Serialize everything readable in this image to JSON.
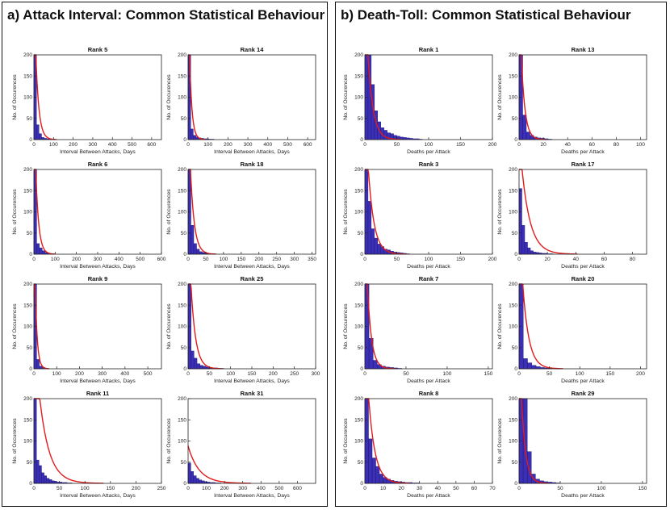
{
  "panels": [
    {
      "id": "a",
      "title": "a) Attack Interval: Common Statistical Behaviour"
    },
    {
      "id": "b",
      "title": "b) Death-Toll: Common Statistical Behaviour"
    }
  ],
  "colors": {
    "bar": "#3b2fb5",
    "fit": "#e31a1c",
    "axis": "#222222"
  },
  "chart_data": [
    {
      "panel": "a",
      "type": "bar",
      "title": "Rank 5",
      "xlabel": "Interval Between Attacks, Days",
      "ylabel": "No. of Occurences",
      "xlim": [
        0,
        650
      ],
      "ylim": [
        0,
        200
      ],
      "xticks": [
        0,
        100,
        200,
        300,
        400,
        500,
        600
      ],
      "yticks": [
        0,
        50,
        100,
        150,
        200
      ],
      "bin_width": 13,
      "values": [
        200,
        35,
        14,
        5,
        3,
        2,
        1
      ],
      "fit_decay": 16
    },
    {
      "panel": "a",
      "type": "bar",
      "title": "Rank 14",
      "xlabel": "Interval Between Attacks, Days",
      "ylabel": "No. of Occurences",
      "xlim": [
        0,
        640
      ],
      "ylim": [
        0,
        200
      ],
      "xticks": [
        0,
        100,
        200,
        300,
        400,
        500,
        600
      ],
      "yticks": [
        0,
        50,
        100,
        150,
        200
      ],
      "bin_width": 13,
      "values": [
        200,
        25,
        10,
        6,
        4,
        3,
        2,
        2,
        1,
        1
      ],
      "fit_decay": 12
    },
    {
      "panel": "a",
      "type": "bar",
      "title": "Rank 6",
      "xlabel": "Interval Between Attacks, Days",
      "ylabel": "No. of Occurences",
      "xlim": [
        0,
        600
      ],
      "ylim": [
        0,
        200
      ],
      "xticks": [
        0,
        100,
        200,
        300,
        400,
        500,
        600
      ],
      "yticks": [
        0,
        50,
        100,
        150,
        200
      ],
      "bin_width": 13,
      "values": [
        200,
        25,
        15,
        8,
        4,
        2,
        1
      ],
      "fit_decay": 14
    },
    {
      "panel": "a",
      "type": "bar",
      "title": "Rank 18",
      "xlabel": "Interval Between Attacks, Days",
      "ylabel": "No. of Occurences",
      "xlim": [
        0,
        360
      ],
      "ylim": [
        0,
        200
      ],
      "xticks": [
        0,
        50,
        100,
        150,
        200,
        250,
        300,
        350
      ],
      "yticks": [
        0,
        50,
        100,
        150,
        200
      ],
      "bin_width": 8,
      "values": [
        200,
        68,
        25,
        12,
        6,
        4,
        2,
        1
      ],
      "fit_decay": 11
    },
    {
      "panel": "a",
      "type": "bar",
      "title": "Rank 9",
      "xlabel": "Interval Between Attacks, Days",
      "ylabel": "No. of Occurences",
      "xlim": [
        0,
        560
      ],
      "ylim": [
        0,
        200
      ],
      "xticks": [
        0,
        100,
        200,
        300,
        400,
        500
      ],
      "yticks": [
        0,
        50,
        100,
        150,
        200
      ],
      "bin_width": 12,
      "values": [
        200,
        22,
        6,
        3,
        1
      ],
      "fit_decay": 9
    },
    {
      "panel": "a",
      "type": "bar",
      "title": "Rank 25",
      "xlabel": "Interval Between Attacks, Days",
      "ylabel": "No. of Occurences",
      "xlim": [
        0,
        300
      ],
      "ylim": [
        0,
        200
      ],
      "xticks": [
        0,
        50,
        100,
        150,
        200,
        250,
        300
      ],
      "yticks": [
        0,
        50,
        100,
        150,
        200
      ],
      "bin_width": 7,
      "values": [
        200,
        42,
        25,
        12,
        8,
        6,
        4,
        3,
        2,
        2,
        1,
        1
      ],
      "fit_decay": 11
    },
    {
      "panel": "a",
      "type": "bar",
      "title": "Rank 11",
      "xlabel": "Interval Between Attacks, Days",
      "ylabel": "No. of Occurences",
      "xlim": [
        0,
        250
      ],
      "ylim": [
        0,
        200
      ],
      "xticks": [
        0,
        50,
        100,
        150,
        200,
        250
      ],
      "yticks": [
        0,
        50,
        100,
        150,
        200
      ],
      "bin_width": 5,
      "values": [
        200,
        55,
        42,
        25,
        18,
        12,
        9,
        6,
        5,
        3,
        3,
        2,
        2,
        1,
        1
      ],
      "fit_decay": 19
    },
    {
      "panel": "a",
      "type": "bar",
      "title": "Rank 31",
      "xlabel": "Interval Between Attacks, Days",
      "ylabel": "No. of Occurences",
      "xlim": [
        0,
        700
      ],
      "ylim": [
        0,
        200
      ],
      "xticks": [
        0,
        100,
        200,
        300,
        400,
        500,
        600
      ],
      "yticks": [
        0,
        50,
        100,
        150,
        200
      ],
      "bin_width": 15,
      "values": [
        48,
        28,
        18,
        12,
        8,
        6,
        4,
        3,
        2,
        2,
        1,
        1
      ],
      "fit_decay": 60
    },
    {
      "panel": "b",
      "type": "bar",
      "title": "Rank 1",
      "xlabel": "Deaths per Attack",
      "ylabel": "No. of Occurences",
      "xlim": [
        0,
        200
      ],
      "ylim": [
        0,
        200
      ],
      "xticks": [
        0,
        50,
        100,
        150,
        200
      ],
      "yticks": [
        0,
        50,
        100,
        150,
        200
      ],
      "bin_width": 5,
      "values": [
        200,
        200,
        130,
        68,
        42,
        28,
        22,
        16,
        14,
        10,
        8,
        6,
        5,
        4,
        3,
        2,
        2,
        1
      ],
      "fit_decay": 8
    },
    {
      "panel": "b",
      "type": "bar",
      "title": "Rank 13",
      "xlabel": "Deaths per Attack",
      "ylabel": "No. of Occurences",
      "xlim": [
        0,
        105
      ],
      "ylim": [
        0,
        200
      ],
      "xticks": [
        0,
        20,
        40,
        60,
        80,
        100
      ],
      "yticks": [
        0,
        50,
        100,
        150,
        200
      ],
      "bin_width": 3,
      "values": [
        200,
        58,
        18,
        10,
        6,
        4,
        3,
        2,
        1
      ],
      "fit_decay": 3
    },
    {
      "panel": "b",
      "type": "bar",
      "title": "Rank 3",
      "xlabel": "Deaths per Attack",
      "ylabel": "No. of Occurences",
      "xlim": [
        0,
        200
      ],
      "ylim": [
        0,
        200
      ],
      "xticks": [
        0,
        50,
        100,
        150,
        200
      ],
      "yticks": [
        0,
        50,
        100,
        150,
        200
      ],
      "bin_width": 5,
      "values": [
        200,
        125,
        60,
        38,
        24,
        18,
        12,
        10,
        7,
        5,
        4,
        3,
        2,
        1
      ],
      "fit_decay": 9
    },
    {
      "panel": "b",
      "type": "bar",
      "title": "Rank 17",
      "xlabel": "Deaths per Attack",
      "ylabel": "No. of Occurences",
      "xlim": [
        0,
        90
      ],
      "ylim": [
        0,
        200
      ],
      "xticks": [
        0,
        20,
        40,
        60,
        80
      ],
      "yticks": [
        0,
        50,
        100,
        150,
        200
      ],
      "bin_width": 2,
      "values": [
        155,
        68,
        28,
        15,
        8,
        5,
        4,
        3,
        2,
        2,
        1,
        1
      ],
      "fit_decay": 6
    },
    {
      "panel": "b",
      "type": "bar",
      "title": "Rank 7",
      "xlabel": "Deaths per Attack",
      "ylabel": "No. of Occurences",
      "xlim": [
        0,
        155
      ],
      "ylim": [
        0,
        200
      ],
      "xticks": [
        0,
        50,
        100,
        150
      ],
      "yticks": [
        0,
        50,
        100,
        150,
        200
      ],
      "bin_width": 5,
      "values": [
        200,
        72,
        20,
        10,
        6,
        4,
        3,
        2,
        1
      ],
      "fit_decay": 5
    },
    {
      "panel": "b",
      "type": "bar",
      "title": "Rank 20",
      "xlabel": "Deaths per Attack",
      "ylabel": "No. of Occurences",
      "xlim": [
        0,
        210
      ],
      "ylim": [
        0,
        200
      ],
      "xticks": [
        0,
        50,
        100,
        150,
        200
      ],
      "yticks": [
        0,
        50,
        100,
        150,
        200
      ],
      "bin_width": 7,
      "values": [
        200,
        24,
        14,
        8,
        5,
        3,
        2,
        1
      ],
      "fit_decay": 10
    },
    {
      "panel": "b",
      "type": "bar",
      "title": "Rank 8",
      "xlabel": "Deaths per Attack",
      "ylabel": "No. of Occurences",
      "xlim": [
        0,
        70
      ],
      "ylim": [
        0,
        200
      ],
      "xticks": [
        0,
        10,
        20,
        30,
        40,
        50,
        60,
        70
      ],
      "yticks": [
        0,
        50,
        100,
        150,
        200
      ],
      "bin_width": 2,
      "values": [
        200,
        105,
        60,
        40,
        22,
        14,
        10,
        7,
        5,
        4,
        3,
        2,
        2,
        1,
        1
      ],
      "fit_decay": 3.5
    },
    {
      "panel": "b",
      "type": "bar",
      "title": "Rank 29",
      "xlabel": "Deaths per Attack",
      "ylabel": "No. of Occurences",
      "xlim": [
        0,
        155
      ],
      "ylim": [
        0,
        200
      ],
      "xticks": [
        0,
        50,
        100,
        150
      ],
      "yticks": [
        0,
        50,
        100,
        150,
        200
      ],
      "bin_width": 5,
      "values": [
        200,
        200,
        75,
        22,
        10,
        6,
        4,
        3,
        2,
        1
      ],
      "fit_decay": 5
    }
  ]
}
